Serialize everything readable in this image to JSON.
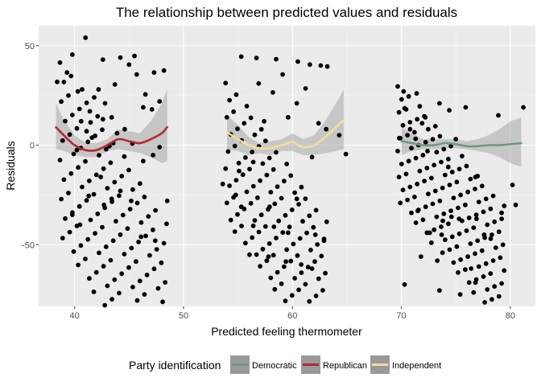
{
  "chart_data": {
    "type": "scatter",
    "title": "The relationship between predicted values and residuals",
    "xlabel": "Predicted feeling thermometer",
    "ylabel": "Residuals",
    "xlim": [
      36.7,
      82.3
    ],
    "ylim": [
      -81,
      60
    ],
    "x_ticks": [
      40,
      50,
      60,
      70,
      80
    ],
    "y_ticks": [
      50,
      0,
      -50
    ],
    "grid": true,
    "legend_position": "bottom",
    "legend": {
      "title": "Party identification",
      "entries": [
        {
          "label": "Democratic",
          "color": "#6f9a7b"
        },
        {
          "label": "Republican",
          "color": "#b22a2e"
        },
        {
          "label": "Independent",
          "color": "#f5dd97"
        }
      ]
    },
    "series": [
      {
        "name": "Republican",
        "color": "#b22a2e",
        "smooth": {
          "x": [
            38.3,
            39.0,
            40.0,
            41.0,
            42.0,
            43.0,
            44.0,
            45.0,
            46.0,
            47.0,
            48.0,
            48.5
          ],
          "y": [
            9,
            5,
            0,
            -2.5,
            -2.5,
            0,
            3,
            2,
            1,
            3,
            6,
            9
          ],
          "lower": [
            -2,
            -3,
            -5,
            -6,
            -6,
            -3,
            -2,
            -3,
            -4,
            -6,
            -9,
            -8
          ],
          "upper": [
            21,
            13,
            5,
            1,
            1,
            3,
            8,
            7,
            6,
            12,
            21,
            28
          ]
        },
        "points": [
          [
            41,
            54
          ],
          [
            39.8,
            45.5
          ],
          [
            45.5,
            44.8
          ],
          [
            44.2,
            44
          ],
          [
            42.6,
            43
          ],
          [
            38.4,
            31.8
          ],
          [
            39.3,
            36.5
          ],
          [
            45,
            40.5
          ],
          [
            48.2,
            37.5
          ],
          [
            47.3,
            36.5
          ],
          [
            45.7,
            35.5
          ],
          [
            42.2,
            28
          ],
          [
            40.3,
            27
          ],
          [
            43.7,
            30.5
          ],
          [
            46.5,
            25.5
          ],
          [
            41.8,
            24
          ],
          [
            42.8,
            21
          ],
          [
            41.4,
            17
          ],
          [
            47.8,
            22
          ],
          [
            47.1,
            18
          ],
          [
            46.3,
            19
          ],
          [
            43.4,
            14
          ],
          [
            42.6,
            13
          ],
          [
            40.6,
            12
          ],
          [
            41.1,
            7
          ],
          [
            43.9,
            6
          ],
          [
            44.6,
            8
          ],
          [
            41.6,
            3.8
          ],
          [
            40.2,
            -2.5
          ],
          [
            43.2,
            -0.5
          ],
          [
            45.3,
            0.8
          ],
          [
            47.8,
            -1
          ],
          [
            47.2,
            -5
          ],
          [
            46.3,
            -8
          ],
          [
            42.4,
            -16
          ],
          [
            44.2,
            -23
          ],
          [
            43.4,
            -27
          ],
          [
            45.2,
            -28
          ],
          [
            42.7,
            -30
          ],
          [
            41.3,
            -25.5
          ],
          [
            39.8,
            -35
          ],
          [
            40.5,
            -40
          ],
          [
            48.5,
            -28
          ],
          [
            46.1,
            -46
          ],
          [
            47.4,
            -48
          ]
        ]
      },
      {
        "name": "Independent",
        "color": "#f5dd97",
        "smooth": {
          "x": [
            54.0,
            55.0,
            56.0,
            57.0,
            58.0,
            59.0,
            60.0,
            61.0,
            62.0,
            63.0,
            64.0,
            64.7
          ],
          "y": [
            6.5,
            3,
            0,
            -1.5,
            -1.5,
            0,
            1.5,
            -1,
            0,
            4,
            9,
            12.5
          ],
          "lower": [
            -2,
            -3,
            -5,
            -4,
            -5,
            -3,
            -3,
            -5,
            -5,
            -4,
            -3,
            -2
          ],
          "upper": [
            15,
            10,
            4,
            1,
            2,
            3,
            6,
            3,
            5,
            12,
            21,
            28
          ]
        },
        "points": [
          [
            55.3,
            44.5
          ],
          [
            56.7,
            43.8
          ],
          [
            58.5,
            43.2
          ],
          [
            60.5,
            42
          ],
          [
            61.6,
            40.5
          ],
          [
            62.6,
            40
          ],
          [
            63.2,
            39.5
          ],
          [
            59.1,
            35.5
          ],
          [
            56.9,
            31
          ],
          [
            61.2,
            28.5
          ],
          [
            58.2,
            26.5
          ],
          [
            60.4,
            21
          ],
          [
            59.6,
            14
          ],
          [
            57.4,
            12
          ],
          [
            62.4,
            11
          ],
          [
            63.1,
            8
          ],
          [
            64.3,
            5
          ],
          [
            64.9,
            -4.5
          ],
          [
            61.8,
            -6
          ],
          [
            56.4,
            -8.5
          ],
          [
            55.1,
            -13
          ],
          [
            53.6,
            -19.5
          ],
          [
            54.8,
            -25
          ],
          [
            60.4,
            -27
          ],
          [
            57.9,
            -31
          ],
          [
            55.3,
            -31
          ],
          [
            56.4,
            -40.5
          ],
          [
            58.3,
            -41
          ],
          [
            59.6,
            -44
          ],
          [
            62.1,
            -45
          ],
          [
            62.9,
            -48
          ],
          [
            56.7,
            -55
          ],
          [
            57.8,
            -56
          ],
          [
            59.4,
            -58.5
          ],
          [
            60.8,
            -60
          ],
          [
            61.8,
            -62
          ]
        ]
      },
      {
        "name": "Democratic",
        "color": "#6f9a7b",
        "smooth": {
          "x": [
            70.0,
            71.0,
            72.0,
            73.0,
            74.0,
            75.0,
            76.0,
            77.0,
            78.0,
            79.0,
            80.0,
            81.0
          ],
          "y": [
            2,
            1,
            0,
            0,
            1,
            0.5,
            -0.5,
            -0.5,
            0,
            0,
            0.5,
            1
          ],
          "lower": [
            -5,
            -3,
            -2,
            -2,
            -1.5,
            -1.5,
            -2,
            -3,
            -4,
            -6,
            -9,
            -11
          ],
          "upper": [
            9,
            6,
            3,
            3,
            3,
            3,
            2,
            3,
            5,
            8,
            12,
            14
          ]
        },
        "points": [
          [
            70.2,
            27
          ],
          [
            71.4,
            26
          ],
          [
            73.5,
            21
          ],
          [
            75.9,
            19
          ],
          [
            74.4,
            17.5
          ],
          [
            72.2,
            14
          ],
          [
            71.9,
            11
          ],
          [
            70.8,
            8
          ],
          [
            75,
            3
          ],
          [
            70.3,
            18.5
          ],
          [
            69.8,
            3.5
          ],
          [
            71.3,
            3.2
          ],
          [
            72.4,
            -3
          ],
          [
            74.3,
            -11
          ],
          [
            76.8,
            -16
          ],
          [
            71.5,
            -33
          ],
          [
            74.6,
            -36
          ],
          [
            75.3,
            -37
          ],
          [
            73.8,
            -38
          ],
          [
            76.9,
            -37
          ],
          [
            79.2,
            -34
          ],
          [
            80.5,
            -30
          ],
          [
            80.2,
            -20
          ],
          [
            72.6,
            -44
          ],
          [
            73.7,
            -45
          ],
          [
            71.8,
            -56
          ],
          [
            73.3,
            -58
          ],
          [
            76.4,
            -62
          ],
          [
            76.8,
            -69
          ],
          [
            70.3,
            -70
          ],
          [
            73.5,
            -73
          ],
          [
            75.4,
            -75
          ],
          [
            77.6,
            -45
          ],
          [
            78.2,
            -47
          ],
          [
            81.2,
            19
          ],
          [
            78.9,
            15
          ]
        ]
      }
    ],
    "bands": [
      {
        "x": [
          38.9,
          48.2
        ],
        "y0": [
          41.5,
          -39.5
        ],
        "spacing": 9.8,
        "count": 10
      },
      {
        "x": [
          54.1,
          62.9
        ],
        "y0": [
          31.2,
          -38.5
        ],
        "spacing": 8.6,
        "count": 9
      },
      {
        "x": [
          69.9,
          79.2
        ],
        "y0": [
          29.5,
          -30.5
        ],
        "spacing": 6.5,
        "count": 10
      }
    ]
  }
}
